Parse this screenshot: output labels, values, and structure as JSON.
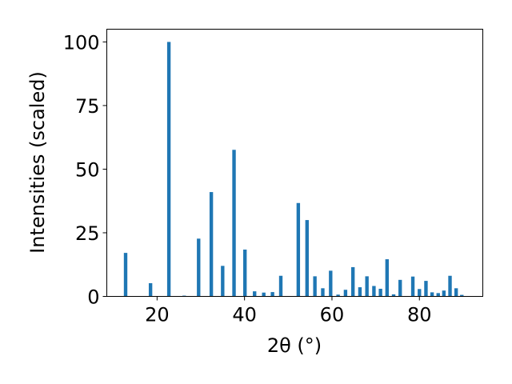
{
  "chart_data": {
    "type": "bar",
    "xlabel": "2θ (°)",
    "ylabel": "Intensities (scaled)",
    "xlim": [
      8.5,
      94.5
    ],
    "ylim": [
      0,
      105
    ],
    "xticks": [
      20,
      40,
      60,
      80
    ],
    "yticks": [
      0,
      25,
      50,
      75,
      100
    ],
    "bar_width": 0.8,
    "bar_color": "#1f77b4",
    "grid": false,
    "x": [
      12.8,
      18.5,
      22.7,
      26.2,
      29.5,
      32.4,
      35.0,
      37.6,
      40.1,
      42.3,
      44.4,
      46.4,
      48.3,
      52.3,
      54.3,
      56.1,
      57.9,
      59.7,
      61.4,
      63.1,
      64.8,
      66.4,
      68.0,
      69.6,
      71.1,
      72.6,
      74.1,
      75.6,
      78.5,
      80.0,
      81.5,
      82.9,
      84.3,
      85.6,
      87.0,
      88.4,
      89.7
    ],
    "values": [
      17.1,
      5.2,
      100,
      0.3,
      22.7,
      41.0,
      12.0,
      57.6,
      18.4,
      2.0,
      1.5,
      1.7,
      8.1,
      36.7,
      30.0,
      7.9,
      3.2,
      10.1,
      0.7,
      2.6,
      11.5,
      3.6,
      7.9,
      4.1,
      3.0,
      14.6,
      0.8,
      6.5,
      7.8,
      2.9,
      6.1,
      1.6,
      1.3,
      2.3,
      8.1,
      3.2,
      0.6
    ]
  }
}
